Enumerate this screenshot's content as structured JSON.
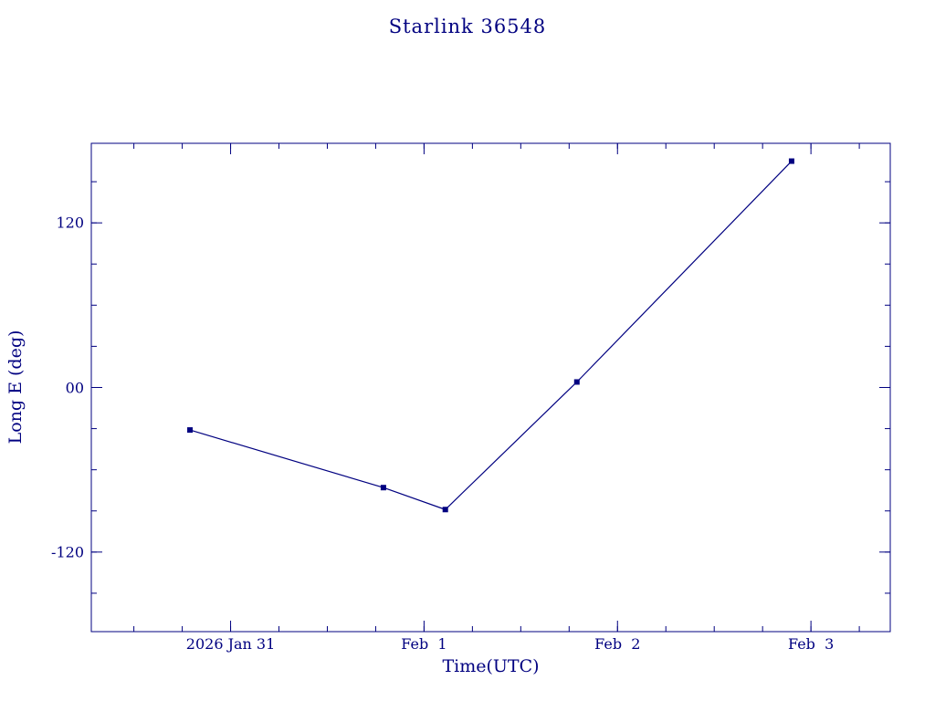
{
  "colors": {
    "plot": "#000080",
    "background": "#ffffff"
  },
  "chart_data": {
    "type": "line",
    "title": "Starlink 36548",
    "xlabel": "Time(UTC)",
    "ylabel": "Long E (deg)",
    "x_unit": "days since 2026 Jan 31 00:00 UTC",
    "xlim": [
      -0.72,
      3.41
    ],
    "ylim": [
      -178,
      178
    ],
    "x": [
      -0.21,
      0.79,
      1.11,
      1.79,
      2.9
    ],
    "y": [
      -31,
      -73,
      -89,
      4,
      165
    ],
    "marker": "square",
    "line_color": "#000080",
    "grid": false,
    "legend": "none",
    "x_major_ticks": [
      0,
      1,
      2,
      3
    ],
    "x_tick_labels": [
      "2026 Jan 31",
      "Feb  1",
      "Feb  2",
      "Feb  3"
    ],
    "x_minor_step": 0.25,
    "y_major_ticks": [
      -120,
      0,
      120
    ],
    "y_tick_labels": [
      "-120",
      "00",
      "120"
    ],
    "y_minor_step": 30
  }
}
